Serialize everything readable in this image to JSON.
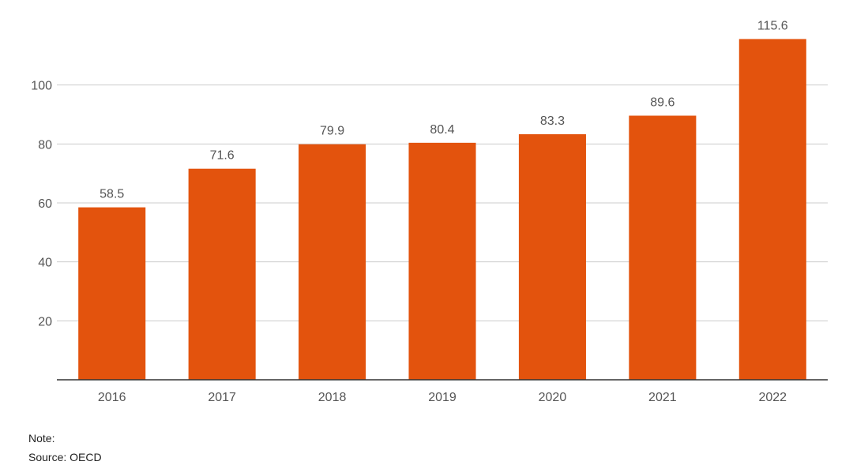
{
  "chart_data": {
    "type": "bar",
    "title": "",
    "xlabel": "",
    "ylabel": "",
    "categories": [
      "2016",
      "2017",
      "2018",
      "2019",
      "2020",
      "2021",
      "2022"
    ],
    "values": [
      58.5,
      71.6,
      79.9,
      80.4,
      83.3,
      89.6,
      115.6
    ],
    "value_labels": [
      "58.5",
      "71.6",
      "79.9",
      "80.4",
      "83.3",
      "89.6",
      "115.6"
    ],
    "ylim": [
      0,
      120
    ],
    "yticks": [
      20,
      40,
      60,
      80,
      100
    ],
    "ytick_labels": [
      "20",
      "40",
      "60",
      "80",
      "100"
    ],
    "grid": true,
    "legend": "none",
    "bar_color": "#E3530D",
    "grid_color": "#cccccc",
    "axis_color": "#333333",
    "text_color": "#555555"
  },
  "footer": {
    "note": "Note:",
    "source": "Source: OECD"
  }
}
